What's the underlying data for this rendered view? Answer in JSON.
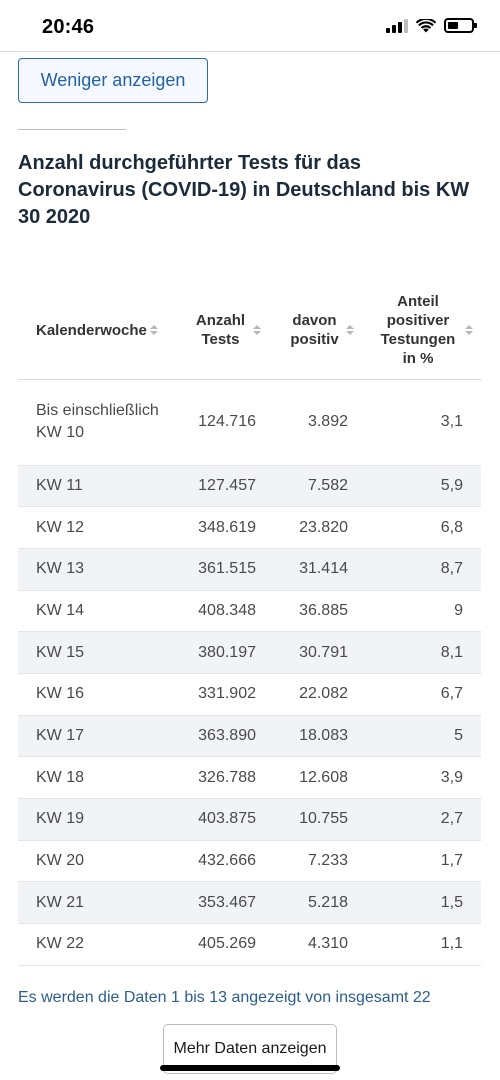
{
  "status_bar": {
    "time": "20:46"
  },
  "actions": {
    "less_label": "Weniger anzeigen",
    "more_label": "Mehr Daten anzeigen"
  },
  "table": {
    "title": "Anzahl durchgeführter Tests für das Coronavirus (COVID-19) in Deutschland bis KW 30 2020",
    "headers": {
      "week": "Kalenderwoche",
      "tests": "Anzahl Tests",
      "positive": "davon positiv",
      "share": "Anteil positiver Testungen in %"
    },
    "rows": [
      {
        "week": "Bis einschließlich KW 10",
        "tests": "124.716",
        "positive": "3.892",
        "share": "3,1"
      },
      {
        "week": "KW 11",
        "tests": "127.457",
        "positive": "7.582",
        "share": "5,9"
      },
      {
        "week": "KW 12",
        "tests": "348.619",
        "positive": "23.820",
        "share": "6,8"
      },
      {
        "week": "KW 13",
        "tests": "361.515",
        "positive": "31.414",
        "share": "8,7"
      },
      {
        "week": "KW 14",
        "tests": "408.348",
        "positive": "36.885",
        "share": "9"
      },
      {
        "week": "KW 15",
        "tests": "380.197",
        "positive": "30.791",
        "share": "8,1"
      },
      {
        "week": "KW 16",
        "tests": "331.902",
        "positive": "22.082",
        "share": "6,7"
      },
      {
        "week": "KW 17",
        "tests": "363.890",
        "positive": "18.083",
        "share": "5"
      },
      {
        "week": "KW 18",
        "tests": "326.788",
        "positive": "12.608",
        "share": "3,9"
      },
      {
        "week": "KW 19",
        "tests": "403.875",
        "positive": "10.755",
        "share": "2,7"
      },
      {
        "week": "KW 20",
        "tests": "432.666",
        "positive": "7.233",
        "share": "1,7"
      },
      {
        "week": "KW 21",
        "tests": "353.467",
        "positive": "5.218",
        "share": "1,5"
      },
      {
        "week": "KW 22",
        "tests": "405.269",
        "positive": "4.310",
        "share": "1,1"
      }
    ],
    "footer": "Es werden die Daten 1 bis 13 angezeigt von insgesamt 22"
  },
  "colors": {
    "accent": "#2262a4",
    "row_alt": "#f2f3f7",
    "title": "#1c2b3a"
  },
  "icons": [
    "signal-icon",
    "wifi-icon",
    "battery-icon",
    "sort-icon"
  ]
}
